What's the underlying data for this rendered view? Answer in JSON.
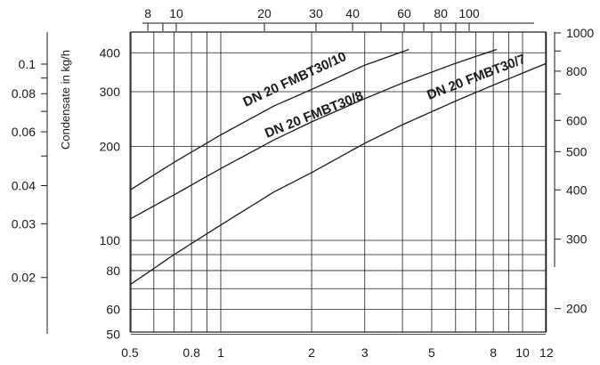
{
  "chart_data": {
    "type": "line",
    "title": "",
    "xlabel": "",
    "ylabel": "",
    "x_scale": "log",
    "y_scale": "log",
    "xlim": [
      0.5,
      12
    ],
    "ylim": [
      50,
      450
    ],
    "x_ticks": [
      0.5,
      0.8,
      1,
      2,
      3,
      5,
      8,
      10,
      12
    ],
    "x_tick_labels": [
      "0.5",
      "0.8",
      "1",
      "2",
      "3",
      "5",
      "8",
      "10",
      "12"
    ],
    "x_grid": [
      0.5,
      0.6,
      0.7,
      0.8,
      0.9,
      1,
      2,
      3,
      4,
      5,
      6,
      7,
      8,
      9,
      10,
      12
    ],
    "y_ticks": [
      50,
      60,
      80,
      100,
      200,
      300,
      400
    ],
    "y_tick_labels": [
      "50",
      "60",
      "80",
      "100",
      "200",
      "300",
      "400"
    ],
    "y_grid": [
      50,
      60,
      70,
      80,
      90,
      100,
      200,
      300,
      400
    ],
    "grid": true,
    "series": [
      {
        "name": "DN 20 FMBT30/10",
        "x": [
          0.5,
          0.7,
          1,
          1.5,
          2,
          3,
          4.2
        ],
        "y": [
          145,
          178,
          218,
          270,
          305,
          365,
          410
        ]
      },
      {
        "name": "DN 20 FMBT30/8",
        "x": [
          0.5,
          0.7,
          1,
          1.5,
          2,
          3,
          4,
          6,
          8.2
        ],
        "y": [
          117,
          140,
          170,
          210,
          240,
          285,
          320,
          370,
          410
        ]
      },
      {
        "name": "DN 20 FMBT30/7",
        "x": [
          0.5,
          0.7,
          1,
          1.5,
          2,
          3,
          4,
          6,
          8,
          12
        ],
        "y": [
          72,
          90,
          112,
          143,
          165,
          205,
          235,
          280,
          315,
          370
        ]
      }
    ],
    "top_axis": {
      "ticks": [
        8,
        10,
        20,
        30,
        40,
        60,
        80,
        100
      ],
      "tick_labels": [
        "8",
        "10",
        "20",
        "30",
        "40",
        "60",
        "80",
        "100"
      ],
      "minor": [
        9,
        50,
        70,
        90
      ]
    },
    "left_axis": {
      "label": "Condensate in  kg/h",
      "ticks": [
        0.02,
        0.03,
        0.04,
        0.06,
        0.08,
        0.1
      ],
      "tick_labels": [
        "0.02",
        "0.03",
        "0.04",
        "0.06",
        "0.08",
        "0.1"
      ],
      "minor": [
        0.05,
        0.07,
        0.09
      ]
    },
    "right_axis": {
      "ticks": [
        200,
        300,
        400,
        500,
        600,
        800,
        1000
      ],
      "tick_labels": [
        "200",
        "300",
        "400",
        "500",
        "600",
        "800",
        "1000"
      ],
      "minor": [
        700,
        900
      ]
    }
  }
}
